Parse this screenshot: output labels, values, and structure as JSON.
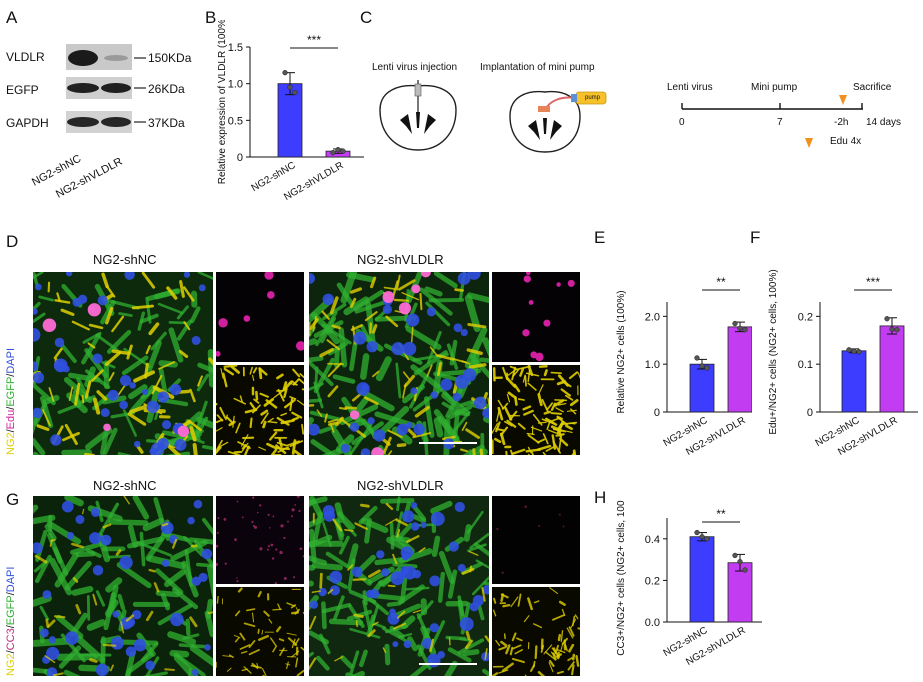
{
  "panels": {
    "A": {
      "letter": "A",
      "blots": [
        {
          "name": "VLDLR",
          "marker": "150KDa"
        },
        {
          "name": "EGFP",
          "marker": "26KDa"
        },
        {
          "name": "GAPDH",
          "marker": "37KDa"
        }
      ],
      "lanes": [
        "NG2-shNC",
        "NG2-shVLDLR"
      ]
    },
    "B": {
      "letter": "B",
      "significance": "***"
    },
    "C": {
      "letter": "C",
      "label_injection": "Lenti virus injection",
      "label_implant": "Implantation of mini pump",
      "pump_label": "pump",
      "timeline": {
        "events": [
          "Lenti virus",
          "Mini pump",
          "Sacrifice"
        ],
        "ticks": [
          "0",
          "7",
          "-2h",
          "14 days"
        ],
        "edu": "Edu 4x"
      }
    },
    "D": {
      "letter": "D",
      "left_title": "NG2-shNC",
      "right_title": "NG2-shVLDLR",
      "stain": [
        "NG2",
        "/",
        "Edu",
        "/",
        "EGFP",
        "/",
        "DAPI"
      ]
    },
    "E": {
      "letter": "E",
      "significance": "**"
    },
    "F": {
      "letter": "F",
      "significance": "***"
    },
    "G": {
      "letter": "G",
      "left_title": "NG2-shNC",
      "right_title": "NG2-shVLDLR",
      "stain": [
        "NG2",
        "/",
        "CC3",
        "/",
        "EGFP",
        "/",
        "DAPI"
      ]
    },
    "H": {
      "letter": "H",
      "significance": "**"
    }
  },
  "colors": {
    "shNC": "#3d3dff",
    "shVLDLR": "#c23cf2",
    "ng2_yellow": "#e0d000",
    "edu_magenta": "#d020a0",
    "cc3_magenta": "#c03080",
    "egfp_green": "#30b030",
    "dapi_blue": "#3050e0",
    "arrow_orange": "#f0901f",
    "pump_yellow": "#f6c12a"
  },
  "chart_data": [
    {
      "id": "B",
      "type": "bar",
      "categories": [
        "NG2-shNC",
        "NG2-shVLDLR"
      ],
      "values": [
        1.0,
        0.08
      ],
      "errors": [
        0.15,
        0.03
      ],
      "points": [
        [
          1.15,
          0.95,
          0.88
        ],
        [
          0.06,
          0.1,
          0.08
        ]
      ],
      "ylabel": "Relative expression of VLDLR (100%)",
      "yticks": [
        "0",
        "0.5",
        "1.0",
        "1.5"
      ],
      "ylim": [
        0,
        1.5
      ]
    },
    {
      "id": "E",
      "type": "bar",
      "categories": [
        "NG2-shNC",
        "NG2-shVLDLR"
      ],
      "values": [
        1.0,
        1.78
      ],
      "errors": [
        0.1,
        0.1
      ],
      "points": [
        [
          1.13,
          0.96,
          0.92
        ],
        [
          1.85,
          1.75,
          1.72
        ]
      ],
      "ylabel": "Relative NG2+ cells (100%)",
      "yticks": [
        "0",
        "1.0",
        "2.0"
      ],
      "ylim": [
        0,
        2.3
      ]
    },
    {
      "id": "F",
      "type": "bar",
      "categories": [
        "NG2-shNC",
        "NG2-shVLDLR"
      ],
      "values": [
        0.128,
        0.18
      ],
      "errors": [
        0.004,
        0.017
      ],
      "points": [
        [
          0.13,
          0.127,
          0.126
        ],
        [
          0.195,
          0.173,
          0.172
        ]
      ],
      "ylabel": "Edu+/NG2+ cells (NG2+ cells, 100%)",
      "yticks": [
        "0",
        "0.1",
        "0.2"
      ],
      "ylim": [
        0,
        0.23
      ]
    },
    {
      "id": "H",
      "type": "bar",
      "categories": [
        "NG2-shNC",
        "NG2-shVLDLR"
      ],
      "values": [
        0.41,
        0.285
      ],
      "errors": [
        0.02,
        0.04
      ],
      "points": [
        [
          0.43,
          0.41,
          0.4
        ],
        [
          0.32,
          0.29,
          0.25
        ]
      ],
      "ylabel": "CC3+/NG2+ cells (NG2+ cells, 100%)",
      "yticks": [
        "0.0",
        "0.2",
        "0.4"
      ],
      "ylim": [
        0,
        0.5
      ]
    }
  ]
}
